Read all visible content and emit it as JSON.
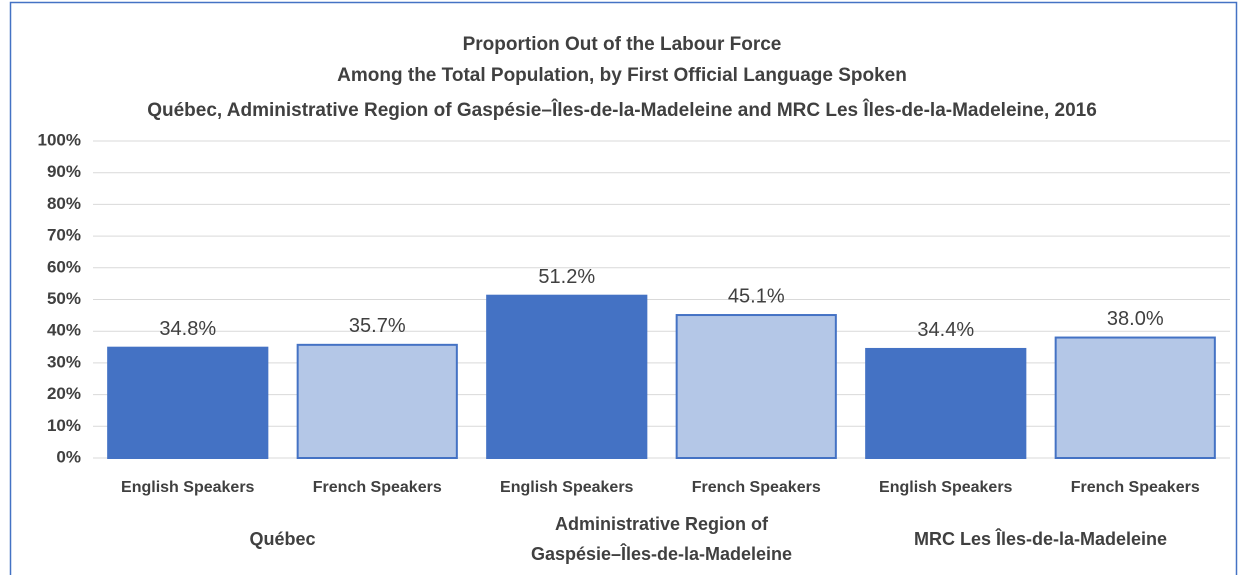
{
  "chart_data": {
    "type": "bar",
    "title": [
      "Proportion Out of the Labour Force",
      "Among the Total Population, by First Official Language Spoken",
      "Québec, Administrative Region of Gaspésie–Îles-de-la-Madeleine and MRC Les Îles-de-la-Madeleine, 2016"
    ],
    "categories": [
      "English Speakers",
      "French Speakers",
      "English Speakers",
      "French Speakers",
      "English Speakers",
      "French Speakers"
    ],
    "groups": [
      [
        "Québec"
      ],
      [
        "Administrative Region of",
        "Gaspésie–Îles-de-la-Madeleine"
      ],
      [
        "MRC Les Îles-de-la-Madeleine"
      ]
    ],
    "values": [
      34.8,
      35.7,
      51.2,
      45.1,
      34.4,
      38.0
    ],
    "value_labels": [
      "34.8%",
      "35.7%",
      "51.2%",
      "45.1%",
      "34.4%",
      "38.0%"
    ],
    "colors": [
      "#4472c4",
      "#b4c7e7",
      "#4472c4",
      "#b4c7e7",
      "#4472c4",
      "#b4c7e7"
    ],
    "ylim": [
      0,
      100
    ],
    "yticks": [
      {
        "value": 0,
        "label": "0%"
      },
      {
        "value": 10,
        "label": "10%"
      },
      {
        "value": 20,
        "label": "20%"
      },
      {
        "value": 30,
        "label": "30%"
      },
      {
        "value": 40,
        "label": "40%"
      },
      {
        "value": 50,
        "label": "50%"
      },
      {
        "value": 60,
        "label": "60%"
      },
      {
        "value": 70,
        "label": "70%"
      },
      {
        "value": 80,
        "label": "80%"
      },
      {
        "value": 90,
        "label": "90%"
      },
      {
        "value": 100,
        "label": "100%"
      }
    ],
    "grid": true
  }
}
